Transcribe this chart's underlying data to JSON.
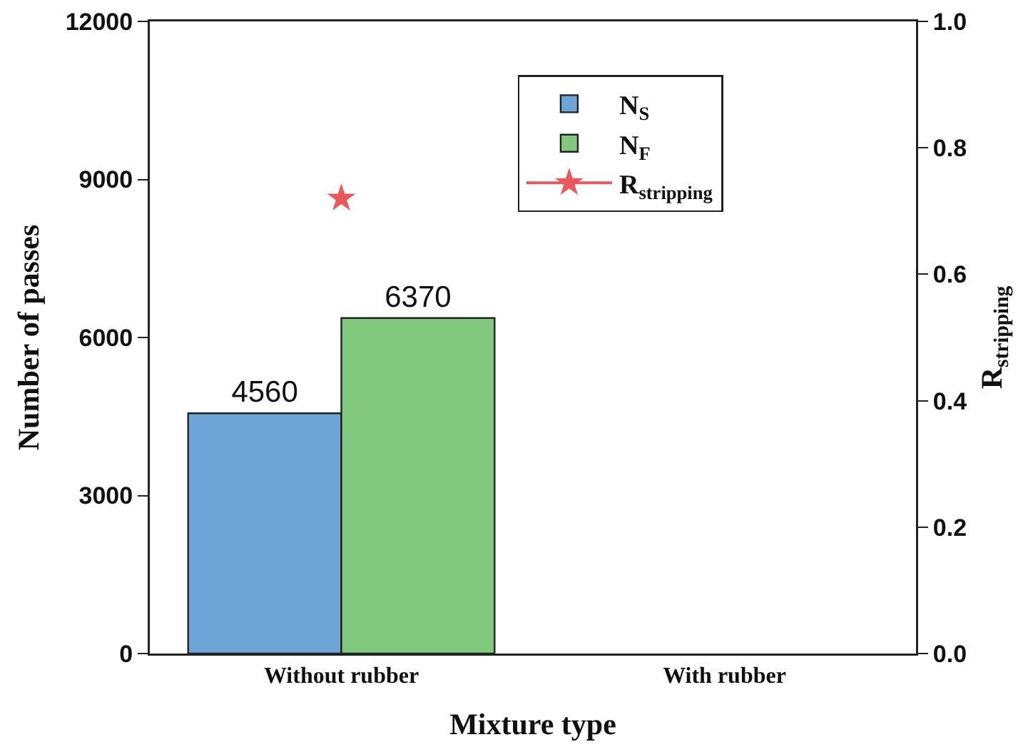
{
  "chart_data": {
    "type": "bar",
    "xlabel": "Mixture type",
    "ylabel": "Number of passes",
    "y2label": "R$_{stripping}$",
    "categories": [
      "Without rubber",
      "With rubber"
    ],
    "series": [
      {
        "name": "N$_{S}$",
        "color": "#6fa5d6",
        "values": [
          4560,
          null
        ],
        "value_labels": [
          "4560",
          null
        ]
      },
      {
        "name": "N$_{F}$",
        "color": "#82c97f",
        "values": [
          6370,
          null
        ],
        "value_labels": [
          "6370",
          null
        ]
      },
      {
        "name": "R$_{stripping}$",
        "type": "line",
        "axis": "y2",
        "color": "#e8595c",
        "marker": "star",
        "line_style": "solid",
        "values": [
          0.72,
          null
        ]
      }
    ],
    "ylim": [
      0,
      12000
    ],
    "yticks": [
      0,
      3000,
      6000,
      9000,
      12000
    ],
    "y2lim": [
      0,
      1
    ],
    "y2ticks": [
      {
        "value": 0,
        "label": "0.0"
      },
      0.2,
      0.4,
      0.6,
      0.8,
      {
        "value": 1,
        "label": "1.0"
      }
    ],
    "grid": false,
    "legend": "top"
  }
}
